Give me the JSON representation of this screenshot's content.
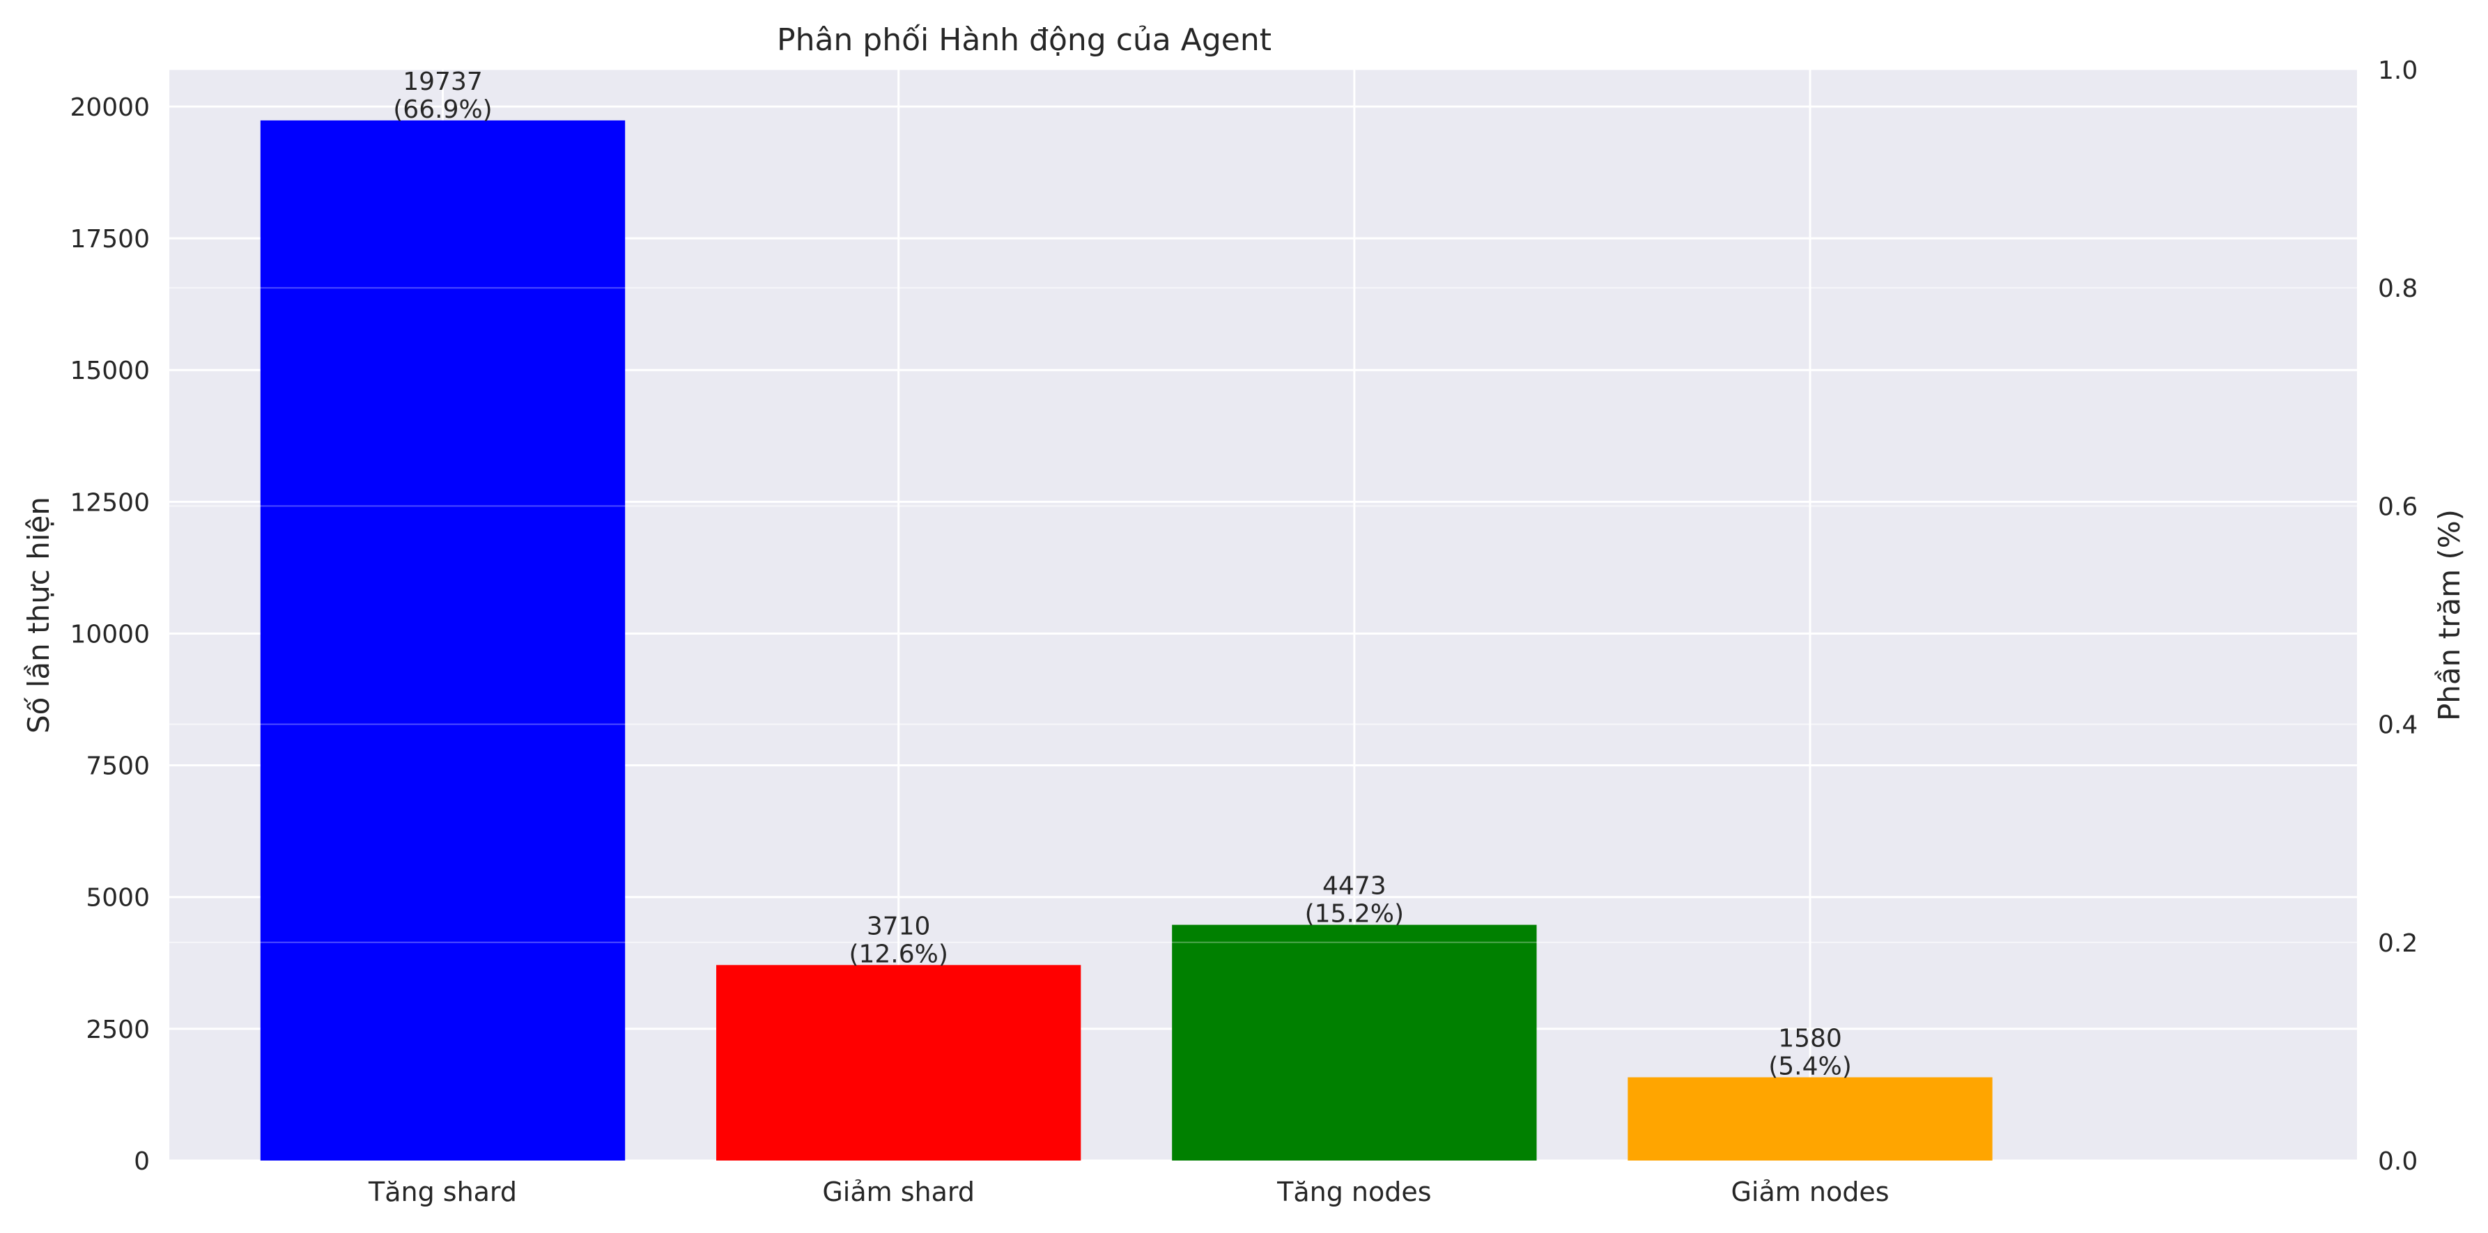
{
  "chart_data": {
    "type": "bar",
    "title": "Phân phối Hành động của Agent",
    "xlabel": "",
    "ylabel": "Số lần thực hiện",
    "ylabel_right": "Phần trăm (%)",
    "categories": [
      "Tăng shard",
      "Giảm shard",
      "Tăng nodes",
      "Giảm nodes"
    ],
    "values": [
      19737,
      3710,
      4473,
      1580
    ],
    "percent_labels": [
      "(66.9%)",
      "(12.6%)",
      "(15.2%)",
      "(5.4%)"
    ],
    "colors": [
      "#0000ff",
      "#ff0000",
      "#008000",
      "#ffa500"
    ],
    "ylim": [
      0,
      20700
    ],
    "yticks": [
      0,
      2500,
      5000,
      7500,
      10000,
      12500,
      15000,
      17500,
      20000
    ],
    "ylim_right": [
      0,
      1.0
    ],
    "yticks_right": [
      "0.0",
      "0.2",
      "0.4",
      "0.6",
      "0.8",
      "1.0"
    ],
    "grid": true,
    "background": "#eaeaf2"
  }
}
